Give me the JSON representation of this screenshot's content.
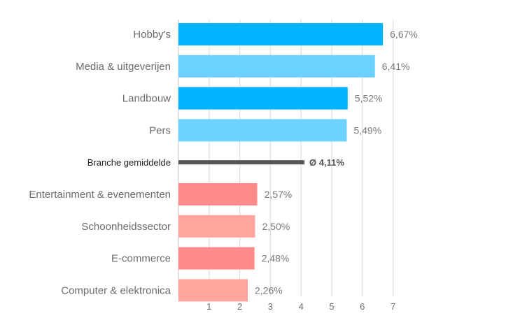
{
  "chart_data": {
    "type": "bar",
    "orientation": "horizontal",
    "grid": true,
    "xlim": [
      0,
      7
    ],
    "xticks": [
      "1",
      "2",
      "3",
      "4",
      "5",
      "6",
      "7"
    ],
    "bars": [
      {
        "category": "Hobby's",
        "value": 6.67,
        "label": "6,67%",
        "color": "#00b4ff",
        "kind": "bar"
      },
      {
        "category": "Media & uitgeverijen",
        "value": 6.41,
        "label": "6,41%",
        "color": "#6dd2ff",
        "kind": "bar"
      },
      {
        "category": "Landbouw",
        "value": 5.52,
        "label": "5,52%",
        "color": "#00b4ff",
        "kind": "bar"
      },
      {
        "category": "Pers",
        "value": 5.49,
        "label": "5,49%",
        "color": "#6dd2ff",
        "kind": "bar"
      },
      {
        "category": "Branche gemiddelde",
        "value": 4.11,
        "label": "Ø 4,11%",
        "color": "#555559",
        "kind": "average"
      },
      {
        "category": "Entertainment & evenementen",
        "value": 2.57,
        "label": "2,57%",
        "color": "#ff8b8b",
        "kind": "bar"
      },
      {
        "category": "Schoonheidssector",
        "value": 2.5,
        "label": "2,50%",
        "color": "#ffa59e",
        "kind": "bar"
      },
      {
        "category": "E-commerce",
        "value": 2.48,
        "label": "2,48%",
        "color": "#ff8b8b",
        "kind": "bar"
      },
      {
        "category": "Computer & elektronica",
        "value": 2.26,
        "label": "2,26%",
        "color": "#ffa59e",
        "kind": "bar"
      }
    ]
  }
}
